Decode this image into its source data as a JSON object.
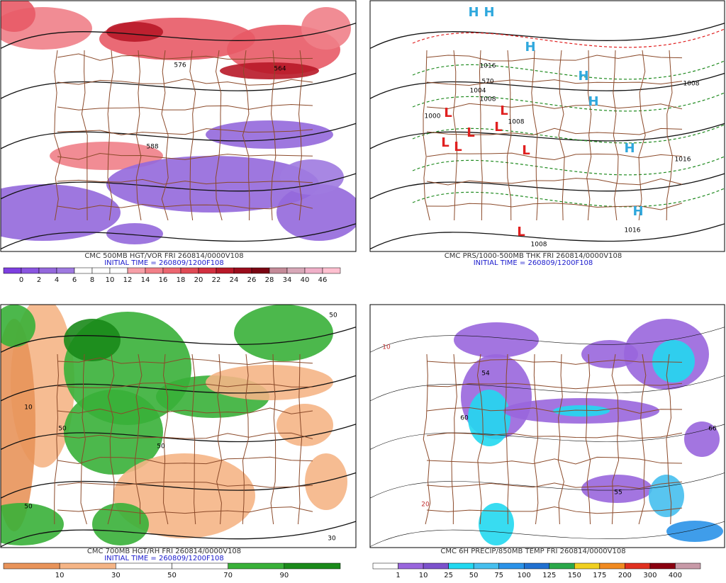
{
  "panels": [
    {
      "title": "CMC 500MB HGT/VOR FRI 260814/0000V108",
      "initial_time": "INITIAL TIME = 260809/1200F108",
      "colorbar": {
        "labels": [
          0,
          2,
          4,
          6,
          8,
          10,
          12,
          14,
          16,
          18,
          20,
          22,
          24,
          26,
          28,
          34,
          40,
          46
        ],
        "colors": [
          "#7d3fe0",
          "#8a55e0",
          "#9468dc",
          "#9f7ae0",
          "#ffffff",
          "#ffffff",
          "#ffffff",
          "#f7a0a8",
          "#f28088",
          "#ec6670",
          "#e04a55",
          "#d23040",
          "#b81828",
          "#9a0c1c",
          "#7a0412",
          "#c48a98",
          "#d8a8b8",
          "#f0b0c8",
          "#ffc0d0"
        ]
      },
      "map_labels": [
        {
          "text": "576",
          "color": "#000000"
        },
        {
          "text": "564",
          "color": "#000000"
        },
        {
          "text": "588",
          "color": "#000000"
        }
      ]
    },
    {
      "title": "CMC PRS/1000-500MB THK FRI 260814/0000V108",
      "initial_time": "INITIAL TIME = 260809/1200F108",
      "map_labels": [
        {
          "text": "H",
          "color": "#2fa8dd"
        },
        {
          "text": "H",
          "color": "#2fa8dd"
        },
        {
          "text": "H",
          "color": "#2fa8dd"
        },
        {
          "text": "H",
          "color": "#2fa8dd"
        },
        {
          "text": "H",
          "color": "#2fa8dd"
        },
        {
          "text": "H",
          "color": "#2fa8dd"
        },
        {
          "text": "H",
          "color": "#2fa8dd"
        },
        {
          "text": "L",
          "color": "#e02020"
        },
        {
          "text": "L",
          "color": "#e02020"
        },
        {
          "text": "L",
          "color": "#e02020"
        },
        {
          "text": "L",
          "color": "#e02020"
        },
        {
          "text": "L",
          "color": "#e02020"
        },
        {
          "text": "L",
          "color": "#e02020"
        },
        {
          "text": "L",
          "color": "#e02020"
        },
        {
          "text": "L",
          "color": "#e02020"
        },
        {
          "text": "1016",
          "color": "#000000"
        },
        {
          "text": "1008",
          "color": "#000000"
        },
        {
          "text": "1016",
          "color": "#000000"
        },
        {
          "text": "1016",
          "color": "#000000"
        },
        {
          "text": "1004",
          "color": "#000000"
        },
        {
          "text": "1000",
          "color": "#000000"
        },
        {
          "text": "1008",
          "color": "#000000"
        },
        {
          "text": "1008",
          "color": "#000000"
        },
        {
          "text": "1008",
          "color": "#000000"
        },
        {
          "text": "570",
          "color": "#000000"
        }
      ]
    },
    {
      "title": "CMC 700MB HGT/RH FRI 260814/0000V108",
      "initial_time": "INITIAL TIME = 260809/1200F108",
      "colorbar": {
        "labels": [
          10,
          30,
          50,
          70,
          90
        ],
        "colors": [
          "#e8935a",
          "#f5b586",
          "#ffffff",
          "#ffffff",
          "#38b038",
          "#1a8a1a"
        ]
      },
      "map_labels": [
        {
          "text": "50",
          "color": "#000000"
        },
        {
          "text": "50",
          "color": "#000000"
        },
        {
          "text": "50",
          "color": "#000000"
        },
        {
          "text": "10",
          "color": "#000000"
        },
        {
          "text": "50",
          "color": "#000000"
        },
        {
          "text": "30",
          "color": "#000000"
        }
      ]
    },
    {
      "title": "CMC 6H PRECIP/850MB TEMP FRI 260814/0000V108",
      "colorbar": {
        "labels": [
          1,
          10,
          25,
          50,
          75,
          100,
          125,
          150,
          175,
          200,
          300,
          400
        ],
        "colors": [
          "#ffffff",
          "#9966dd",
          "#7c52cc",
          "#22d8f0",
          "#46bfee",
          "#2a92e8",
          "#2070d0",
          "#2aa84a",
          "#f0d020",
          "#f08a20",
          "#e03020",
          "#8a0010",
          "#c89aa8"
        ]
      },
      "map_labels": [
        {
          "text": "10",
          "color": "#c03030"
        },
        {
          "text": "54",
          "color": "#000000"
        },
        {
          "text": "60",
          "color": "#000000"
        },
        {
          "text": "66",
          "color": "#000000"
        },
        {
          "text": "55",
          "color": "#000000"
        },
        {
          "text": "20",
          "color": "#c03030"
        }
      ]
    }
  ]
}
